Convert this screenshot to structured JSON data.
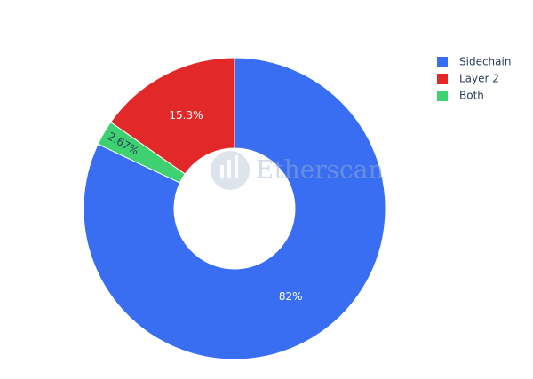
{
  "chart_data": {
    "type": "pie",
    "categories": [
      "Sidechain",
      "Layer 2",
      "Both"
    ],
    "values": [
      82,
      15.3,
      2.67
    ],
    "value_labels": [
      "82%",
      "15.3%",
      "2.67%"
    ],
    "colors": [
      "#3a6ef2",
      "#e3282a",
      "#3dd26f"
    ],
    "hole": true,
    "legend": "top-right",
    "watermark": "Etherscan"
  }
}
